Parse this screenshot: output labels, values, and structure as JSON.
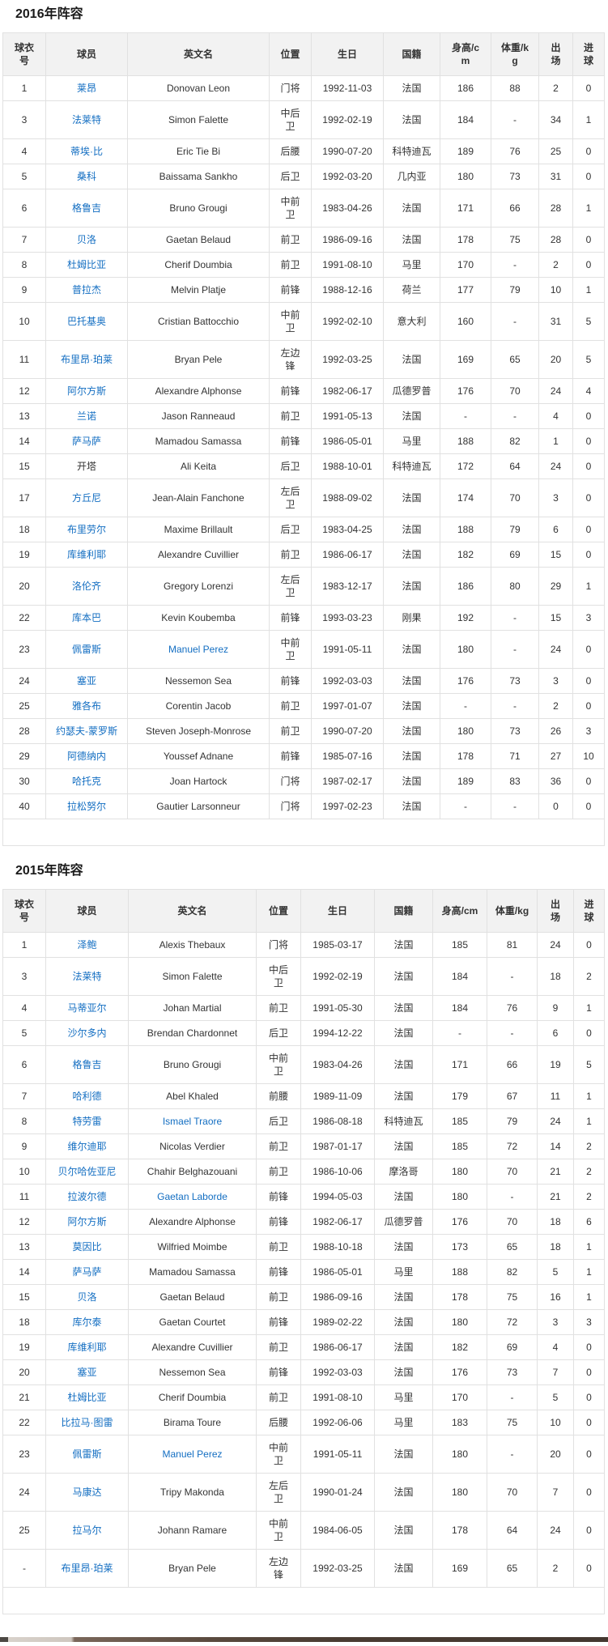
{
  "colors": {
    "link": "#136ec2",
    "text": "#333333",
    "header_bg": "#f2f2f2",
    "border": "#e1e1e1"
  },
  "sections": [
    {
      "title": "2016年阵容",
      "columns": [
        "球衣\n号",
        "球员",
        "英文名",
        "位置",
        "生日",
        "国籍",
        "身高/c\nm",
        "体重/k\ng",
        "出\n场",
        "进\n球"
      ],
      "rows": [
        {
          "no": "1",
          "name": "莱昂",
          "name_link": true,
          "en": "Donovan Leon",
          "en_link": false,
          "pos": "门将",
          "dob": "1992-11-03",
          "nat": "法国",
          "height": "186",
          "weight": "88",
          "apps": "2",
          "goals": "0"
        },
        {
          "no": "3",
          "name": "法莱特",
          "name_link": true,
          "en": "Simon Falette",
          "en_link": false,
          "pos": "中后\n卫",
          "dob": "1992-02-19",
          "nat": "法国",
          "height": "184",
          "weight": "-",
          "apps": "34",
          "goals": "1"
        },
        {
          "no": "4",
          "name": "蒂埃·比",
          "name_link": true,
          "en": "Eric Tie Bi",
          "en_link": false,
          "pos": "后腰",
          "dob": "1990-07-20",
          "nat": "科特迪瓦",
          "height": "189",
          "weight": "76",
          "apps": "25",
          "goals": "0"
        },
        {
          "no": "5",
          "name": "桑科",
          "name_link": true,
          "en": "Baissama Sankho",
          "en_link": false,
          "pos": "后卫",
          "dob": "1992-03-20",
          "nat": "几内亚",
          "height": "180",
          "weight": "73",
          "apps": "31",
          "goals": "0"
        },
        {
          "no": "6",
          "name": "格鲁吉",
          "name_link": true,
          "en": "Bruno Grougi",
          "en_link": false,
          "pos": "中前\n卫",
          "dob": "1983-04-26",
          "nat": "法国",
          "height": "171",
          "weight": "66",
          "apps": "28",
          "goals": "1"
        },
        {
          "no": "7",
          "name": "贝洛",
          "name_link": true,
          "en": "Gaetan Belaud",
          "en_link": false,
          "pos": "前卫",
          "dob": "1986-09-16",
          "nat": "法国",
          "height": "178",
          "weight": "75",
          "apps": "28",
          "goals": "0"
        },
        {
          "no": "8",
          "name": "杜姆比亚",
          "name_link": true,
          "en": "Cherif Doumbia",
          "en_link": false,
          "pos": "前卫",
          "dob": "1991-08-10",
          "nat": "马里",
          "height": "170",
          "weight": "-",
          "apps": "2",
          "goals": "0"
        },
        {
          "no": "9",
          "name": "普拉杰",
          "name_link": true,
          "en": "Melvin Platje",
          "en_link": false,
          "pos": "前锋",
          "dob": "1988-12-16",
          "nat": "荷兰",
          "height": "177",
          "weight": "79",
          "apps": "10",
          "goals": "1"
        },
        {
          "no": "10",
          "name": "巴托基奥",
          "name_link": true,
          "en": "Cristian Battocchio",
          "en_link": false,
          "pos": "中前\n卫",
          "dob": "1992-02-10",
          "nat": "意大利",
          "height": "160",
          "weight": "-",
          "apps": "31",
          "goals": "5"
        },
        {
          "no": "11",
          "name": "布里昂·珀莱",
          "name_link": true,
          "en": "Bryan Pele",
          "en_link": false,
          "pos": "左边\n锋",
          "dob": "1992-03-25",
          "nat": "法国",
          "height": "169",
          "weight": "65",
          "apps": "20",
          "goals": "5"
        },
        {
          "no": "12",
          "name": "阿尔方斯",
          "name_link": true,
          "en": "Alexandre Alphonse",
          "en_link": false,
          "pos": "前锋",
          "dob": "1982-06-17",
          "nat": "瓜德罗普",
          "height": "176",
          "weight": "70",
          "apps": "24",
          "goals": "4"
        },
        {
          "no": "13",
          "name": "兰诺",
          "name_link": true,
          "en": "Jason Ranneaud",
          "en_link": false,
          "pos": "前卫",
          "dob": "1991-05-13",
          "nat": "法国",
          "height": "-",
          "weight": "-",
          "apps": "4",
          "goals": "0"
        },
        {
          "no": "14",
          "name": "萨马萨",
          "name_link": true,
          "en": "Mamadou Samassa",
          "en_link": false,
          "pos": "前锋",
          "dob": "1986-05-01",
          "nat": "马里",
          "height": "188",
          "weight": "82",
          "apps": "1",
          "goals": "0"
        },
        {
          "no": "15",
          "name": "开塔",
          "name_link": false,
          "en": "Ali Keita",
          "en_link": false,
          "pos": "后卫",
          "dob": "1988-10-01",
          "nat": "科特迪瓦",
          "height": "172",
          "weight": "64",
          "apps": "24",
          "goals": "0"
        },
        {
          "no": "17",
          "name": "方丘尼",
          "name_link": true,
          "en": "Jean-Alain Fanchone",
          "en_link": false,
          "pos": "左后\n卫",
          "dob": "1988-09-02",
          "nat": "法国",
          "height": "174",
          "weight": "70",
          "apps": "3",
          "goals": "0"
        },
        {
          "no": "18",
          "name": "布里劳尔",
          "name_link": true,
          "en": "Maxime Brillault",
          "en_link": false,
          "pos": "后卫",
          "dob": "1983-04-25",
          "nat": "法国",
          "height": "188",
          "weight": "79",
          "apps": "6",
          "goals": "0"
        },
        {
          "no": "19",
          "name": "库维利耶",
          "name_link": true,
          "en": "Alexandre Cuvillier",
          "en_link": false,
          "pos": "前卫",
          "dob": "1986-06-17",
          "nat": "法国",
          "height": "182",
          "weight": "69",
          "apps": "15",
          "goals": "0"
        },
        {
          "no": "20",
          "name": "洛伦齐",
          "name_link": true,
          "en": "Gregory Lorenzi",
          "en_link": false,
          "pos": "左后\n卫",
          "dob": "1983-12-17",
          "nat": "法国",
          "height": "186",
          "weight": "80",
          "apps": "29",
          "goals": "1"
        },
        {
          "no": "22",
          "name": "库本巴",
          "name_link": true,
          "en": "Kevin Koubemba",
          "en_link": false,
          "pos": "前锋",
          "dob": "1993-03-23",
          "nat": "刚果",
          "height": "192",
          "weight": "-",
          "apps": "15",
          "goals": "3"
        },
        {
          "no": "23",
          "name": "佩雷斯",
          "name_link": true,
          "en": "Manuel Perez",
          "en_link": true,
          "pos": "中前\n卫",
          "dob": "1991-05-11",
          "nat": "法国",
          "height": "180",
          "weight": "-",
          "apps": "24",
          "goals": "0"
        },
        {
          "no": "24",
          "name": "塞亚",
          "name_link": true,
          "en": "Nessemon Sea",
          "en_link": false,
          "pos": "前锋",
          "dob": "1992-03-03",
          "nat": "法国",
          "height": "176",
          "weight": "73",
          "apps": "3",
          "goals": "0"
        },
        {
          "no": "25",
          "name": "雅各布",
          "name_link": true,
          "en": "Corentin Jacob",
          "en_link": false,
          "pos": "前卫",
          "dob": "1997-01-07",
          "nat": "法国",
          "height": "-",
          "weight": "-",
          "apps": "2",
          "goals": "0"
        },
        {
          "no": "28",
          "name": "约瑟夫-蒙罗斯",
          "name_link": true,
          "en": "Steven Joseph-Monrose",
          "en_link": false,
          "pos": "前卫",
          "dob": "1990-07-20",
          "nat": "法国",
          "height": "180",
          "weight": "73",
          "apps": "26",
          "goals": "3"
        },
        {
          "no": "29",
          "name": "阿德纳内",
          "name_link": true,
          "en": "Youssef Adnane",
          "en_link": false,
          "pos": "前锋",
          "dob": "1985-07-16",
          "nat": "法国",
          "height": "178",
          "weight": "71",
          "apps": "27",
          "goals": "10"
        },
        {
          "no": "30",
          "name": "哈托克",
          "name_link": true,
          "en": "Joan Hartock",
          "en_link": false,
          "pos": "门将",
          "dob": "1987-02-17",
          "nat": "法国",
          "height": "189",
          "weight": "83",
          "apps": "36",
          "goals": "0"
        },
        {
          "no": "40",
          "name": "拉松努尔",
          "name_link": true,
          "en": "Gautier Larsonneur",
          "en_link": false,
          "pos": "门将",
          "dob": "1997-02-23",
          "nat": "法国",
          "height": "-",
          "weight": "-",
          "apps": "0",
          "goals": "0"
        }
      ]
    },
    {
      "title": "2015年阵容",
      "columns": [
        "球衣\n号",
        "球员",
        "英文名",
        "位置",
        "生日",
        "国籍",
        "身高/cm",
        "体重/kg",
        "出\n场",
        "进\n球"
      ],
      "rows": [
        {
          "no": "1",
          "name": "泽鲍",
          "name_link": true,
          "en": "Alexis Thebaux",
          "en_link": false,
          "pos": "门将",
          "dob": "1985-03-17",
          "nat": "法国",
          "height": "185",
          "weight": "81",
          "apps": "24",
          "goals": "0"
        },
        {
          "no": "3",
          "name": "法莱特",
          "name_link": true,
          "en": "Simon Falette",
          "en_link": false,
          "pos": "中后\n卫",
          "dob": "1992-02-19",
          "nat": "法国",
          "height": "184",
          "weight": "-",
          "apps": "18",
          "goals": "2"
        },
        {
          "no": "4",
          "name": "马蒂亚尔",
          "name_link": true,
          "en": "Johan Martial",
          "en_link": false,
          "pos": "前卫",
          "dob": "1991-05-30",
          "nat": "法国",
          "height": "184",
          "weight": "76",
          "apps": "9",
          "goals": "1"
        },
        {
          "no": "5",
          "name": "沙尔多内",
          "name_link": true,
          "en": "Brendan Chardonnet",
          "en_link": false,
          "pos": "后卫",
          "dob": "1994-12-22",
          "nat": "法国",
          "height": "-",
          "weight": "-",
          "apps": "6",
          "goals": "0"
        },
        {
          "no": "6",
          "name": "格鲁吉",
          "name_link": true,
          "en": "Bruno Grougi",
          "en_link": false,
          "pos": "中前\n卫",
          "dob": "1983-04-26",
          "nat": "法国",
          "height": "171",
          "weight": "66",
          "apps": "19",
          "goals": "5"
        },
        {
          "no": "7",
          "name": "哈利德",
          "name_link": true,
          "en": "Abel Khaled",
          "en_link": false,
          "pos": "前腰",
          "dob": "1989-11-09",
          "nat": "法国",
          "height": "179",
          "weight": "67",
          "apps": "11",
          "goals": "1"
        },
        {
          "no": "8",
          "name": "特劳雷",
          "name_link": true,
          "en": "Ismael Traore",
          "en_link": true,
          "pos": "后卫",
          "dob": "1986-08-18",
          "nat": "科特迪瓦",
          "height": "185",
          "weight": "79",
          "apps": "24",
          "goals": "1"
        },
        {
          "no": "9",
          "name": "维尔迪耶",
          "name_link": true,
          "en": "Nicolas Verdier",
          "en_link": false,
          "pos": "前卫",
          "dob": "1987-01-17",
          "nat": "法国",
          "height": "185",
          "weight": "72",
          "apps": "14",
          "goals": "2"
        },
        {
          "no": "10",
          "name": "贝尔哈佐亚尼",
          "name_link": true,
          "en": "Chahir Belghazouani",
          "en_link": false,
          "pos": "前卫",
          "dob": "1986-10-06",
          "nat": "摩洛哥",
          "height": "180",
          "weight": "70",
          "apps": "21",
          "goals": "2"
        },
        {
          "no": "11",
          "name": "拉波尔德",
          "name_link": true,
          "en": "Gaetan Laborde",
          "en_link": true,
          "pos": "前锋",
          "dob": "1994-05-03",
          "nat": "法国",
          "height": "180",
          "weight": "-",
          "apps": "21",
          "goals": "2"
        },
        {
          "no": "12",
          "name": "阿尔方斯",
          "name_link": true,
          "en": "Alexandre Alphonse",
          "en_link": false,
          "pos": "前锋",
          "dob": "1982-06-17",
          "nat": "瓜德罗普",
          "height": "176",
          "weight": "70",
          "apps": "18",
          "goals": "6"
        },
        {
          "no": "13",
          "name": "莫因比",
          "name_link": true,
          "en": "Wilfried Moimbe",
          "en_link": false,
          "pos": "前卫",
          "dob": "1988-10-18",
          "nat": "法国",
          "height": "173",
          "weight": "65",
          "apps": "18",
          "goals": "1"
        },
        {
          "no": "14",
          "name": "萨马萨",
          "name_link": true,
          "en": "Mamadou Samassa",
          "en_link": false,
          "pos": "前锋",
          "dob": "1986-05-01",
          "nat": "马里",
          "height": "188",
          "weight": "82",
          "apps": "5",
          "goals": "1"
        },
        {
          "no": "15",
          "name": "贝洛",
          "name_link": true,
          "en": "Gaetan Belaud",
          "en_link": false,
          "pos": "前卫",
          "dob": "1986-09-16",
          "nat": "法国",
          "height": "178",
          "weight": "75",
          "apps": "16",
          "goals": "1"
        },
        {
          "no": "18",
          "name": "库尔泰",
          "name_link": true,
          "en": "Gaetan Courtet",
          "en_link": false,
          "pos": "前锋",
          "dob": "1989-02-22",
          "nat": "法国",
          "height": "180",
          "weight": "72",
          "apps": "3",
          "goals": "3"
        },
        {
          "no": "19",
          "name": "库维利耶",
          "name_link": true,
          "en": "Alexandre Cuvillier",
          "en_link": false,
          "pos": "前卫",
          "dob": "1986-06-17",
          "nat": "法国",
          "height": "182",
          "weight": "69",
          "apps": "4",
          "goals": "0"
        },
        {
          "no": "20",
          "name": "塞亚",
          "name_link": true,
          "en": "Nessemon Sea",
          "en_link": false,
          "pos": "前锋",
          "dob": "1992-03-03",
          "nat": "法国",
          "height": "176",
          "weight": "73",
          "apps": "7",
          "goals": "0"
        },
        {
          "no": "21",
          "name": "杜姆比亚",
          "name_link": true,
          "en": "Cherif Doumbia",
          "en_link": false,
          "pos": "前卫",
          "dob": "1991-08-10",
          "nat": "马里",
          "height": "170",
          "weight": "-",
          "apps": "5",
          "goals": "0"
        },
        {
          "no": "22",
          "name": "比拉马·图雷",
          "name_link": true,
          "en": "Birama Toure",
          "en_link": false,
          "pos": "后腰",
          "dob": "1992-06-06",
          "nat": "马里",
          "height": "183",
          "weight": "75",
          "apps": "10",
          "goals": "0"
        },
        {
          "no": "23",
          "name": "佩雷斯",
          "name_link": true,
          "en": "Manuel Perez",
          "en_link": true,
          "pos": "中前\n卫",
          "dob": "1991-05-11",
          "nat": "法国",
          "height": "180",
          "weight": "-",
          "apps": "20",
          "goals": "0"
        },
        {
          "no": "24",
          "name": "马康达",
          "name_link": true,
          "en": "Tripy Makonda",
          "en_link": false,
          "pos": "左后\n卫",
          "dob": "1990-01-24",
          "nat": "法国",
          "height": "180",
          "weight": "70",
          "apps": "7",
          "goals": "0"
        },
        {
          "no": "25",
          "name": "拉马尔",
          "name_link": true,
          "en": "Johann Ramare",
          "en_link": false,
          "pos": "中前\n卫",
          "dob": "1984-06-05",
          "nat": "法国",
          "height": "178",
          "weight": "64",
          "apps": "24",
          "goals": "0"
        },
        {
          "no": "-",
          "name": "布里昂·珀莱",
          "name_link": true,
          "en": "Bryan Pele",
          "en_link": false,
          "pos": "左边\n锋",
          "dob": "1992-03-25",
          "nat": "法国",
          "height": "169",
          "weight": "65",
          "apps": "2",
          "goals": "0"
        }
      ]
    }
  ]
}
